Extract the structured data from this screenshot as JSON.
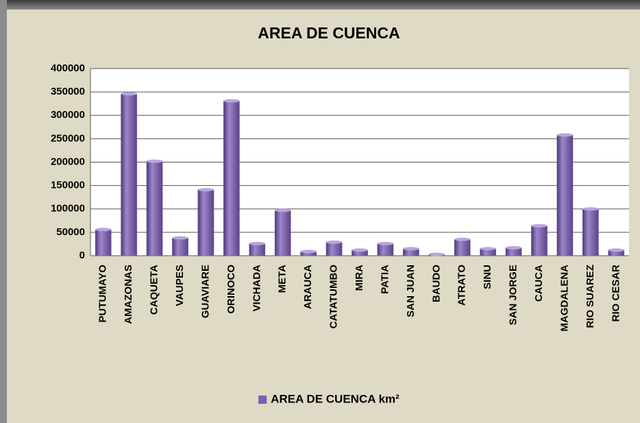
{
  "chart_data": {
    "type": "bar",
    "title": "AREA DE CUENCA",
    "categories": [
      "PUTUMAYO",
      "AMAZONAS",
      "CAQUETA",
      "VAUPES",
      "GUAVIARE",
      "ORINOCO",
      "VICHADA",
      "META",
      "ARAUCA",
      "CATATUMBO",
      "MIRA",
      "PATIA",
      "SAN JUAN",
      "BAUDO",
      "ATRATO",
      "SINU",
      "SAN JORGE",
      "CAUCA",
      "MAGDALENA",
      "RIO SUAREZ",
      "RIO CESAR"
    ],
    "series": [
      {
        "name": "AREA DE CUENCA km²",
        "color": "#7b60aa",
        "values": [
          56000,
          346000,
          202000,
          38000,
          141000,
          331000,
          26000,
          97000,
          9000,
          29000,
          12000,
          26000,
          15000,
          3000,
          35000,
          15000,
          17000,
          64000,
          258000,
          100000,
          12000
        ]
      }
    ],
    "ylim": [
      0,
      400000
    ],
    "yticks": [
      0,
      50000,
      100000,
      150000,
      200000,
      250000,
      300000,
      350000,
      400000
    ],
    "grid": true,
    "legend": "bottom"
  }
}
